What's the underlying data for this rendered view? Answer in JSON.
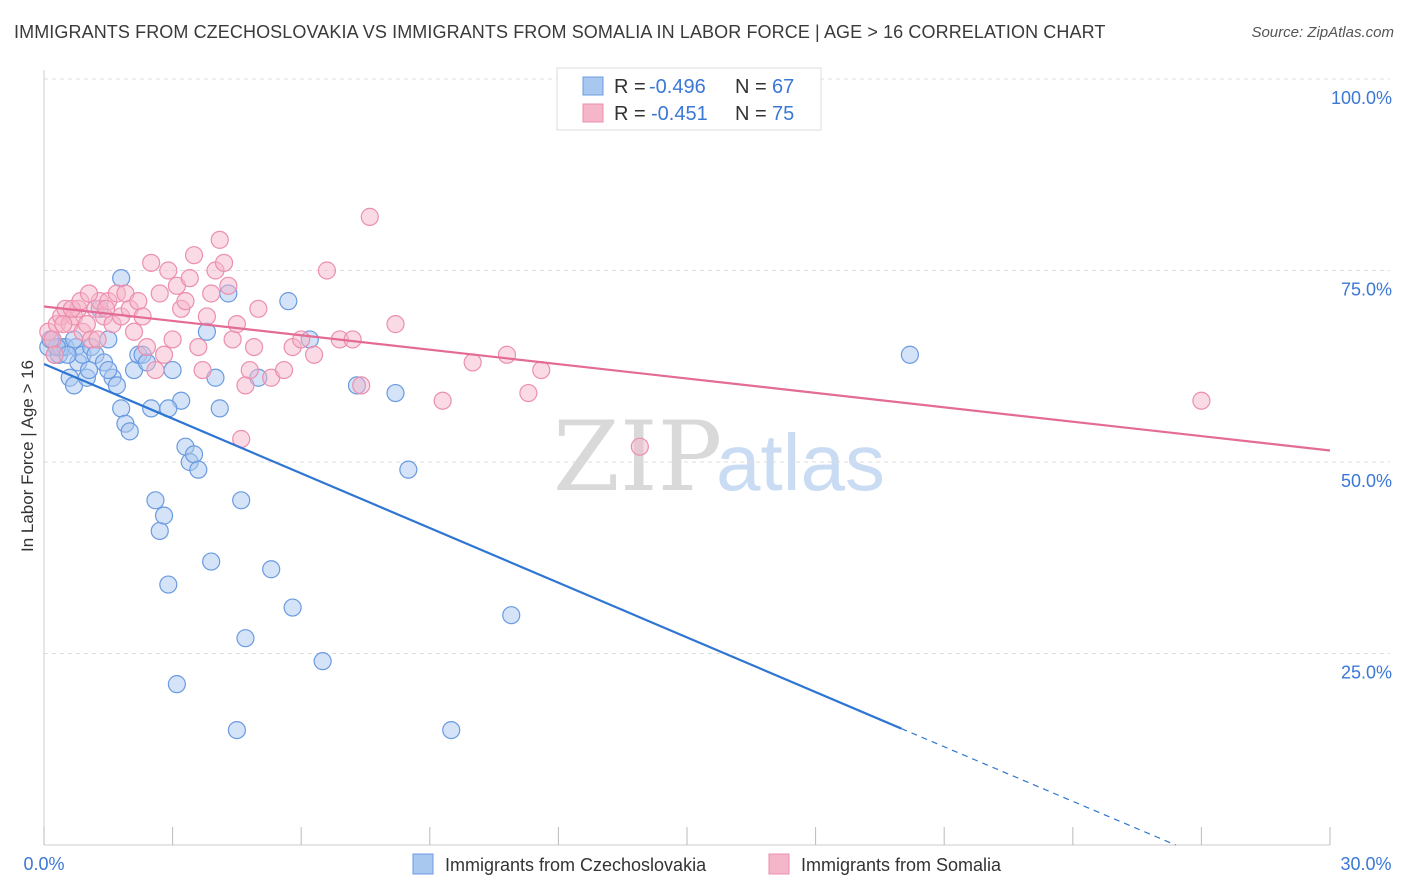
{
  "title": "IMMIGRANTS FROM CZECHOSLOVAKIA VS IMMIGRANTS FROM SOMALIA IN LABOR FORCE | AGE > 16 CORRELATION CHART",
  "source": "Source: ZipAtlas.com",
  "watermark": {
    "zip": "ZIP",
    "atlas": "atlas"
  },
  "colors": {
    "blue_fill": "#a9c8f0",
    "blue_stroke": "#6a9be0",
    "blue_line": "#2f76d2",
    "pink_fill": "#f5b6ca",
    "pink_stroke": "#ec8fae",
    "pink_line": "#e36b95",
    "tick_text": "#3b78d6",
    "grid": "#dddddd"
  },
  "stats": {
    "r_label": "R =",
    "n_label": "N =",
    "czech": {
      "r": "-0.496",
      "n": "67"
    },
    "somalia": {
      "r": "-0.451",
      "n": "75"
    }
  },
  "chart_data": {
    "type": "scatter",
    "title": "IMMIGRANTS FROM CZECHOSLOVAKIA VS IMMIGRANTS FROM SOMALIA IN LABOR FORCE | AGE > 16 CORRELATION CHART",
    "xlabel": "",
    "ylabel": "In Labor Force | Age > 16",
    "xlim": [
      0,
      30
    ],
    "ylim": [
      0,
      100
    ],
    "x_ticks": [
      "0.0%",
      "30.0%"
    ],
    "y_ticks": [
      {
        "value": 25,
        "label": "25.0%"
      },
      {
        "value": 50,
        "label": "50.0%"
      },
      {
        "value": 75,
        "label": "75.0%"
      },
      {
        "value": 100,
        "label": "100.0%"
      }
    ],
    "grid": true,
    "legend_position": "bottom",
    "series": [
      {
        "name": "Immigrants from Czechoslovakia",
        "color": "#6a9be0",
        "x": [
          0.1,
          0.2,
          0.25,
          0.3,
          0.35,
          0.4,
          0.5,
          0.6,
          0.7,
          0.75,
          0.8,
          0.9,
          1.0,
          1.05,
          1.1,
          1.2,
          1.3,
          1.4,
          1.5,
          1.6,
          1.7,
          1.8,
          1.9,
          2.0,
          2.1,
          2.2,
          2.3,
          2.4,
          2.5,
          2.6,
          2.7,
          2.8,
          2.9,
          3.0,
          3.1,
          3.2,
          3.3,
          3.4,
          3.5,
          3.6,
          3.8,
          3.9,
          4.0,
          4.1,
          4.3,
          4.5,
          4.6,
          4.7,
          5.0,
          5.3,
          5.7,
          5.8,
          6.2,
          6.5,
          7.3,
          8.2,
          8.5,
          9.5,
          10.9,
          20.2,
          0.3,
          0.7,
          1.5,
          1.8,
          2.9,
          0.15,
          0.55
        ],
        "y": [
          65,
          66,
          64,
          65,
          64,
          65,
          65,
          61,
          60,
          65,
          63,
          64,
          61,
          62,
          65,
          64,
          70,
          63,
          66,
          61,
          60,
          57,
          55,
          54,
          62,
          64,
          64,
          63,
          57,
          45,
          41,
          43,
          34,
          62,
          21,
          58,
          52,
          50,
          51,
          49,
          67,
          37,
          61,
          57,
          72,
          15,
          45,
          27,
          61,
          36,
          71,
          31,
          66,
          24,
          60,
          59,
          49,
          15,
          30,
          64,
          65,
          66,
          62,
          74,
          57,
          66,
          64
        ]
      },
      {
        "name": "Immigrants from Somalia",
        "color": "#ec8fae",
        "x": [
          0.1,
          0.2,
          0.3,
          0.4,
          0.5,
          0.6,
          0.7,
          0.8,
          0.9,
          1.0,
          1.1,
          1.2,
          1.3,
          1.4,
          1.5,
          1.6,
          1.7,
          1.8,
          1.9,
          2.0,
          2.1,
          2.2,
          2.3,
          2.4,
          2.5,
          2.6,
          2.7,
          2.8,
          2.9,
          3.0,
          3.1,
          3.2,
          3.3,
          3.4,
          3.5,
          3.6,
          3.7,
          3.8,
          3.9,
          4.0,
          4.1,
          4.2,
          4.3,
          4.4,
          4.5,
          4.6,
          4.7,
          4.8,
          4.9,
          5.0,
          5.3,
          5.6,
          5.8,
          6.0,
          6.3,
          6.6,
          6.9,
          7.2,
          7.6,
          8.2,
          9.3,
          10.0,
          10.8,
          11.3,
          11.6,
          0.25,
          0.45,
          0.65,
          0.85,
          1.05,
          1.25,
          1.45,
          27.0,
          13.9,
          7.4
        ],
        "y": [
          67,
          66,
          68,
          69,
          70,
          68,
          69,
          70,
          67,
          68,
          66,
          70,
          71,
          69,
          71,
          68,
          72,
          69,
          72,
          70,
          67,
          71,
          69,
          65,
          76,
          62,
          72,
          64,
          75,
          66,
          73,
          70,
          71,
          74,
          77,
          65,
          62,
          69,
          72,
          75,
          79,
          76,
          73,
          66,
          68,
          53,
          60,
          62,
          65,
          70,
          61,
          62,
          65,
          66,
          64,
          75,
          66,
          66,
          82,
          68,
          58,
          63,
          64,
          59,
          62,
          64,
          68,
          70,
          71,
          72,
          66,
          70,
          58,
          52,
          60
        ]
      }
    ]
  },
  "legend": {
    "czech_label": "Immigrants from Czechoslovakia",
    "somalia_label": "Immigrants from Somalia"
  },
  "trendlines": {
    "czech": {
      "x0": 0,
      "y0": 62.8,
      "x_solid_end": 20.0,
      "y_solid_end": 15.2,
      "x1": 26.4,
      "y1": 0
    },
    "somalia": {
      "x0": 0,
      "y0": 70.3,
      "x1": 30,
      "y1": 51.5
    }
  }
}
